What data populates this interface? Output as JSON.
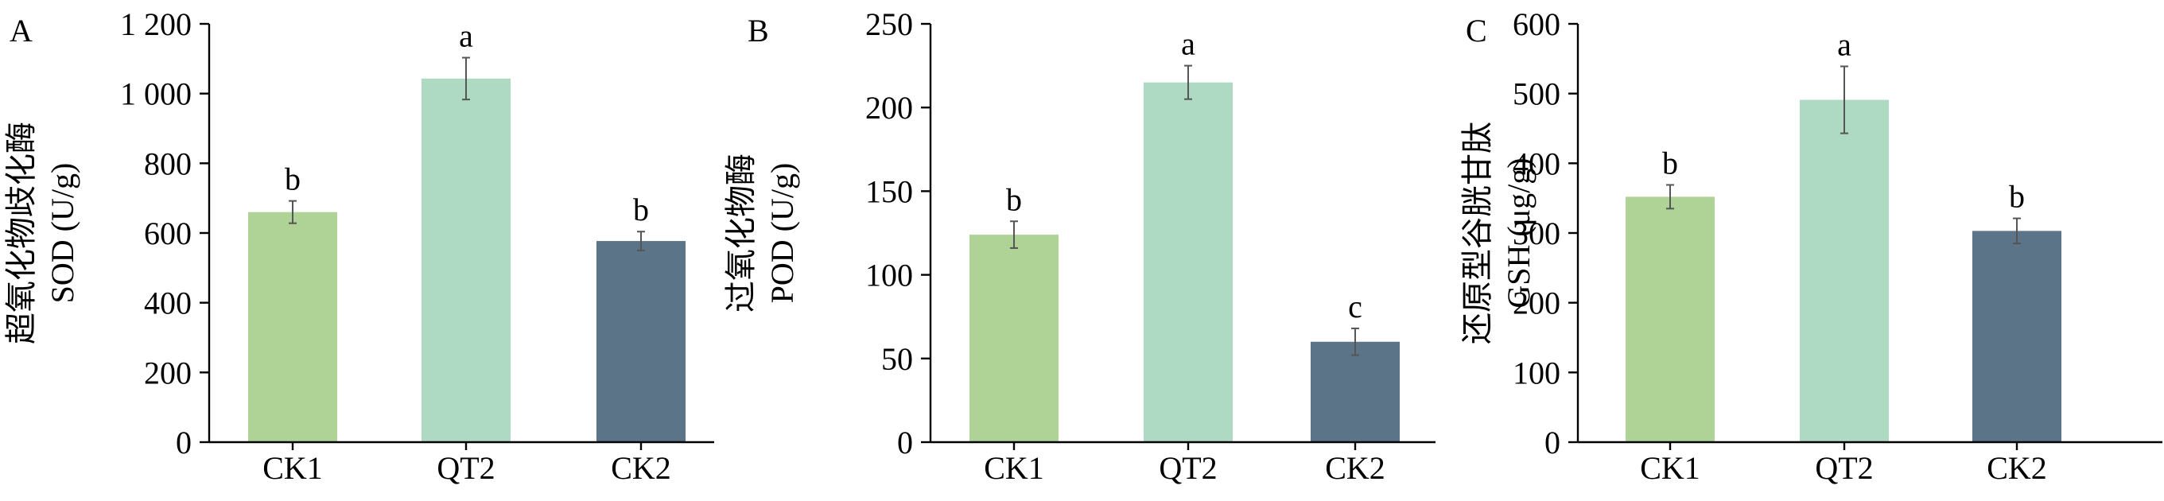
{
  "chart_data": [
    {
      "type": "bar",
      "panel": "A",
      "ylabel_line1": "超氧化物歧化酶",
      "ylabel_line2": "SOD (U/g)",
      "ylim": [
        0,
        1200
      ],
      "yticks": [
        0,
        200,
        400,
        600,
        800,
        1000,
        1200
      ],
      "ytick_labels": [
        "0",
        "200",
        "400",
        "600",
        "800",
        "1 000",
        "1 200"
      ],
      "categories": [
        "CK1",
        "QT2",
        "CK2"
      ],
      "values": [
        660,
        1043,
        577
      ],
      "errors": [
        32,
        60,
        27
      ],
      "letters": [
        "b",
        "a",
        "b"
      ],
      "colors": [
        "#afd297",
        "#aedac3",
        "#5b7488"
      ]
    },
    {
      "type": "bar",
      "panel": "B",
      "ylabel_line1": "过氧化物酶",
      "ylabel_line2": "POD (U/g)",
      "ylim": [
        0,
        250
      ],
      "yticks": [
        0,
        50,
        100,
        150,
        200,
        250
      ],
      "ytick_labels": [
        "0",
        "50",
        "100",
        "150",
        "200",
        "250"
      ],
      "categories": [
        "CK1",
        "QT2",
        "CK2"
      ],
      "values": [
        124,
        215,
        60
      ],
      "errors": [
        8,
        10,
        8
      ],
      "letters": [
        "b",
        "a",
        "c"
      ],
      "colors": [
        "#afd297",
        "#aedac3",
        "#5b7488"
      ]
    },
    {
      "type": "bar",
      "panel": "C",
      "ylabel_line1": "还原型谷胱甘肽",
      "ylabel_line2": "GSH (μg/g)",
      "ylim": [
        0,
        600
      ],
      "yticks": [
        0,
        100,
        200,
        300,
        400,
        500,
        600
      ],
      "ytick_labels": [
        "0",
        "100",
        "200",
        "300",
        "400",
        "500",
        "600"
      ],
      "categories": [
        "CK1",
        "QT2",
        "CK2"
      ],
      "values": [
        352,
        491,
        303
      ],
      "errors": [
        17,
        48,
        18
      ],
      "letters": [
        "b",
        "a",
        "b"
      ],
      "colors": [
        "#afd297",
        "#aedac3",
        "#5b7488"
      ]
    }
  ]
}
